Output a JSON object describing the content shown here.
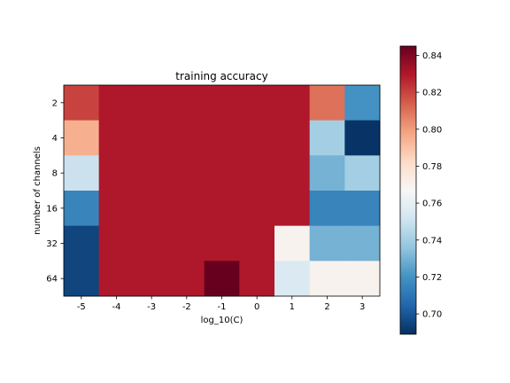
{
  "chart_data": {
    "type": "heatmap",
    "title": "training accuracy",
    "xlabel": "log_10(C)",
    "ylabel": "number of channels",
    "x_categories": [
      "-5",
      "-4",
      "-3",
      "-2",
      "-1",
      "0",
      "1",
      "2",
      "3"
    ],
    "y_categories": [
      "2",
      "4",
      "8",
      "16",
      "32",
      "64"
    ],
    "values": [
      [
        0.82,
        0.83,
        0.83,
        0.83,
        0.83,
        0.83,
        0.83,
        0.81,
        0.72
      ],
      [
        0.795,
        0.83,
        0.83,
        0.83,
        0.83,
        0.83,
        0.83,
        0.74,
        0.69
      ],
      [
        0.75,
        0.83,
        0.83,
        0.83,
        0.83,
        0.83,
        0.83,
        0.73,
        0.74
      ],
      [
        0.715,
        0.83,
        0.83,
        0.83,
        0.83,
        0.83,
        0.83,
        0.715,
        0.715
      ],
      [
        0.695,
        0.83,
        0.83,
        0.83,
        0.83,
        0.83,
        0.77,
        0.73,
        0.73
      ],
      [
        0.695,
        0.83,
        0.83,
        0.83,
        0.845,
        0.83,
        0.755,
        0.77,
        0.77
      ]
    ],
    "colormap": "RdBu_r",
    "vmin": 0.689,
    "vmax": 0.845,
    "colorbar": {
      "ticks": [
        0.7,
        0.72,
        0.74,
        0.76,
        0.78,
        0.8,
        0.82,
        0.84
      ],
      "tick_labels": [
        "0.70",
        "0.72",
        "0.74",
        "0.76",
        "0.78",
        "0.80",
        "0.82",
        "0.84"
      ]
    },
    "grid": false,
    "legend": "colorbar-right"
  }
}
